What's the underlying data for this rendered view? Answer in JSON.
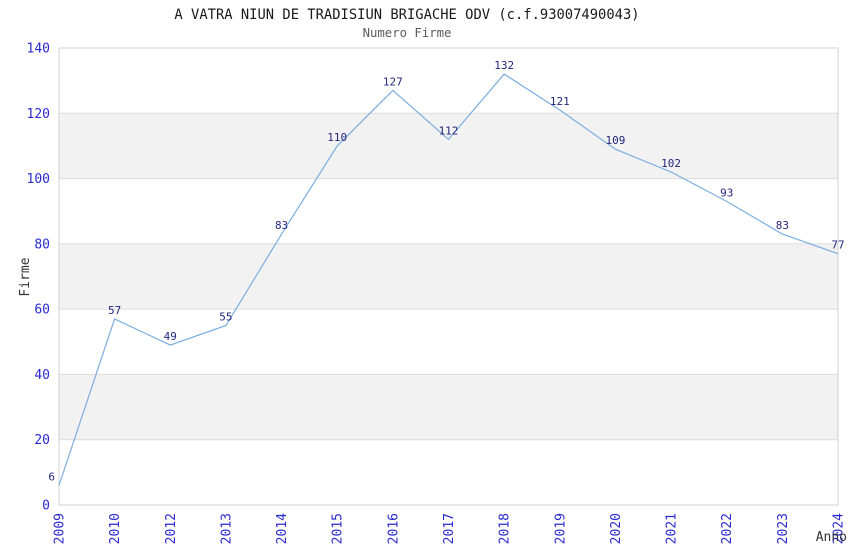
{
  "chart_data": {
    "type": "line",
    "title": "A VATRA NIUN DE TRADISIUN BRIGACHE ODV (c.f.93007490043)",
    "subtitle": "Numero Firme",
    "xlabel": "Anno",
    "ylabel": "Firme",
    "categories": [
      "2009",
      "2010",
      "2012",
      "2013",
      "2014",
      "2015",
      "2016",
      "2017",
      "2018",
      "2019",
      "2020",
      "2021",
      "2022",
      "2023",
      "2024"
    ],
    "values": [
      6,
      57,
      49,
      55,
      83,
      110,
      127,
      112,
      132,
      121,
      109,
      102,
      93,
      83,
      77
    ],
    "point_labels": [
      "6",
      "57",
      "49",
      "55",
      "83",
      "110",
      "127",
      "112",
      "132",
      "121",
      "109",
      "102",
      "93",
      "83",
      "77"
    ],
    "ylim": [
      0,
      140
    ],
    "yticks": [
      0,
      20,
      40,
      60,
      80,
      100,
      120,
      140
    ],
    "grid": true,
    "shaded_bands": [
      [
        20,
        40
      ],
      [
        60,
        80
      ],
      [
        100,
        120
      ]
    ],
    "legend": "none",
    "x_tick_rotation": 90
  },
  "colors": {
    "background": "#ffffff",
    "line": "#7aaee0",
    "tick_label": "#2a2ad2",
    "data_label": "#26267d",
    "band": "#f2f2f2",
    "gridline": "#dcdcdc",
    "border": "#d0d0d0",
    "title": "#1a1a1a",
    "subtitle": "#5a5a5a",
    "axis_label": "#333333"
  }
}
